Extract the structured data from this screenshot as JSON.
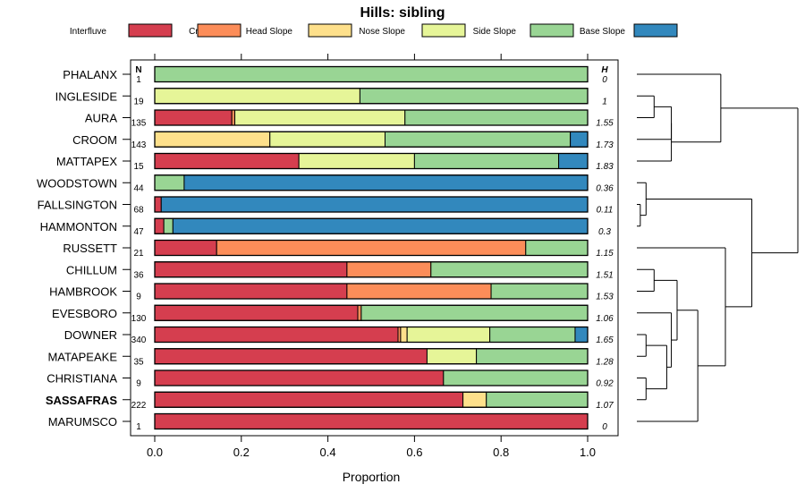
{
  "chart_data": {
    "type": "bar",
    "stacked": true,
    "orientation": "horizontal",
    "title": "Hills: sibling",
    "xlabel": "Proportion",
    "ylabel": "",
    "xlim": [
      0,
      1
    ],
    "x_ticks": [
      "0.0",
      "0.2",
      "0.4",
      "0.6",
      "0.8",
      "1.0"
    ],
    "n_header": "N",
    "h_header": "H",
    "legend_position": "top",
    "highlight": "SASSAFRAS",
    "legend": [
      {
        "name": "Interfluve",
        "color": "#D53E4F"
      },
      {
        "name": "Crest",
        "color": "#FC8D59"
      },
      {
        "name": "Head Slope",
        "color": "#FEE08B"
      },
      {
        "name": "Nose Slope",
        "color": "#E6F598"
      },
      {
        "name": "Side Slope",
        "color": "#99D594"
      },
      {
        "name": "Base Slope",
        "color": "#3288BD"
      }
    ],
    "series_order": [
      "Interfluve",
      "Crest",
      "Head Slope",
      "Nose Slope",
      "Side Slope",
      "Base Slope"
    ],
    "categories": [
      "PHALANX",
      "INGLESIDE",
      "AURA",
      "CROOM",
      "MATTAPEX",
      "WOODSTOWN",
      "FALLSINGTON",
      "HAMMONTON",
      "RUSSETT",
      "CHILLUM",
      "HAMBROOK",
      "EVESBORO",
      "DOWNER",
      "MATAPEAKE",
      "CHRISTIANA",
      "SASSAFRAS",
      "MARUMSCO"
    ],
    "n": [
      "1",
      "19",
      "135",
      "143",
      "15",
      "44",
      "68",
      "47",
      "21",
      "36",
      "9",
      "130",
      "340",
      "35",
      "9",
      "222",
      "1"
    ],
    "h": [
      "0",
      "1",
      "1.55",
      "1.73",
      "1.83",
      "0.36",
      "0.11",
      "0.3",
      "1.15",
      "1.51",
      "1.53",
      "1.06",
      "1.65",
      "1.28",
      "0.92",
      "1.07",
      "0"
    ],
    "values": [
      [
        0,
        0,
        0,
        0,
        1.0,
        0
      ],
      [
        0,
        0,
        0,
        0.474,
        0.526,
        0
      ],
      [
        0.178,
        0.007,
        0,
        0.393,
        0.422,
        0
      ],
      [
        0,
        0,
        0.266,
        0.266,
        0.428,
        0.04
      ],
      [
        0.333,
        0,
        0,
        0.267,
        0.333,
        0.067
      ],
      [
        0,
        0,
        0,
        0,
        0.068,
        0.932
      ],
      [
        0.015,
        0,
        0,
        0,
        0,
        0.985
      ],
      [
        0.021,
        0,
        0,
        0,
        0.021,
        0.958
      ],
      [
        0.143,
        0.714,
        0,
        0,
        0.143,
        0
      ],
      [
        0.444,
        0.194,
        0,
        0,
        0.362,
        0
      ],
      [
        0.444,
        0.333,
        0,
        0,
        0.223,
        0
      ],
      [
        0.469,
        0.008,
        0,
        0,
        0.523,
        0
      ],
      [
        0.562,
        0.006,
        0.015,
        0.191,
        0.197,
        0.029
      ],
      [
        0.629,
        0,
        0,
        0.114,
        0.257,
        0
      ],
      [
        0.667,
        0,
        0,
        0,
        0.333,
        0
      ],
      [
        0.712,
        0,
        0.054,
        0,
        0.234,
        0
      ],
      [
        1.0,
        0,
        0,
        0,
        0,
        0
      ]
    ],
    "dendrogram": {
      "merges": [
        [
          [
            "INGLESIDE",
            "AURA"
          ],
          0.15
        ],
        [
          [
            "INGLESIDE",
            "AURA",
            "CROOM"
          ],
          0.3
        ],
        [
          [
            "INGLESIDE",
            "AURA",
            "CROOM",
            "MATTAPEX"
          ],
          0.3
        ],
        [
          [
            "PHALANX",
            "INGLESIDE",
            "AURA",
            "CROOM",
            "MATTAPEX"
          ],
          0.73
        ],
        [
          [
            "FALLSINGTON",
            "HAMMONTON"
          ],
          0.03
        ],
        [
          [
            "WOODSTOWN",
            "FALLSINGTON",
            "HAMMONTON"
          ],
          0.08
        ],
        [
          [
            "CHILLUM",
            "HAMBROOK"
          ],
          0.15
        ],
        [
          [
            "DOWNER",
            "MATAPEAKE"
          ],
          0.08
        ],
        [
          [
            "CHRISTIANA",
            "SASSAFRAS"
          ],
          0.08
        ],
        [
          [
            "DOWNER",
            "MATAPEAKE",
            "CHRISTIANA",
            "SASSAFRAS"
          ],
          0.26
        ],
        [
          [
            "EVESBORO",
            "DOWNER",
            "MATAPEAKE",
            "CHRISTIANA",
            "SASSAFRAS"
          ],
          0.3
        ],
        [
          [
            "CHILLUM",
            "HAMBROOK",
            "EVESBORO",
            "DOWNER",
            "MATAPEAKE",
            "CHRISTIANA",
            "SASSAFRAS"
          ],
          0.35
        ],
        [
          [
            "CHILLUM",
            "HAMBROOK",
            "EVESBORO",
            "DOWNER",
            "MATAPEAKE",
            "CHRISTIANA",
            "SASSAFRAS",
            "MARUMSCO"
          ],
          0.53
        ],
        [
          [
            "RUSSETT",
            "CHILLUM",
            "HAMBROOK",
            "EVESBORO",
            "DOWNER",
            "MATAPEAKE",
            "CHRISTIANA",
            "SASSAFRAS",
            "MARUMSCO"
          ],
          0.77
        ],
        [
          [
            "WOODSTOWN",
            "FALLSINGTON",
            "HAMMONTON",
            "RUSSETT",
            "CHILLUM",
            "HAMBROOK",
            "EVESBORO",
            "DOWNER",
            "MATAPEAKE",
            "CHRISTIANA",
            "SASSAFRAS",
            "MARUMSCO"
          ],
          1.0
        ],
        [
          [
            "PHALANX",
            "INGLESIDE",
            "AURA",
            "CROOM",
            "MATTAPEX",
            "WOODSTOWN",
            "FALLSINGTON",
            "HAMMONTON",
            "RUSSETT",
            "CHILLUM",
            "HAMBROOK",
            "EVESBORO",
            "DOWNER",
            "MATAPEAKE",
            "CHRISTIANA",
            "SASSAFRAS",
            "MARUMSCO"
          ],
          1.4
        ]
      ],
      "max_height": 1.4
    }
  }
}
